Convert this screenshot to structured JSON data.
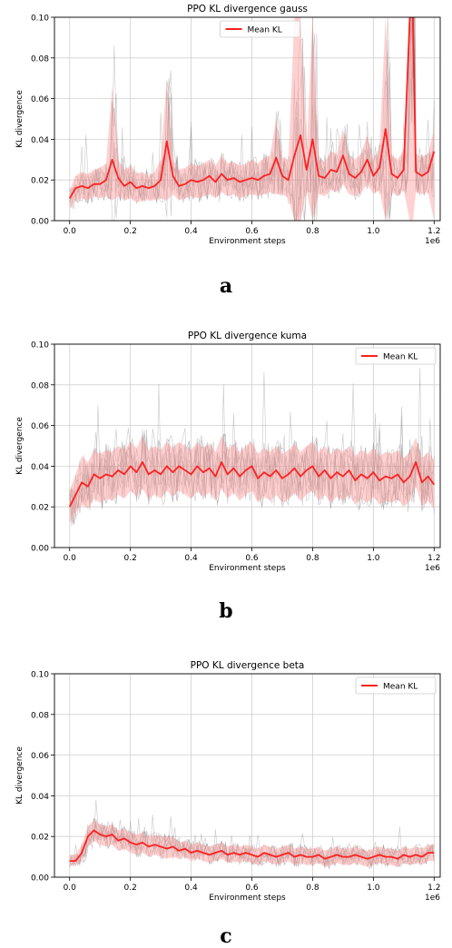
{
  "figure": {
    "panel_letters": [
      "a",
      "b",
      "c"
    ]
  },
  "chart_data": [
    {
      "type": "line",
      "title": "PPO KL divergence gauss",
      "xlabel": "Environment steps",
      "ylabel": "KL divergence",
      "x_scale_note": "1e6",
      "xlim": [
        -0.05,
        1.22
      ],
      "ylim": [
        0,
        0.1
      ],
      "xticks": [
        "0.0",
        "0.2",
        "0.4",
        "0.6",
        "0.8",
        "1.0",
        "1.2"
      ],
      "yticks": [
        "0.00",
        "0.02",
        "0.04",
        "0.06",
        "0.08",
        "0.10"
      ],
      "grid": true,
      "legend": {
        "location": "top-center",
        "entries": [
          "Mean KL"
        ]
      },
      "colors": {
        "mean": "#ff2020",
        "band": "#ff9999",
        "runs": "#888888"
      },
      "series": [
        {
          "name": "Mean KL",
          "x": [
            0.0,
            0.02,
            0.04,
            0.06,
            0.08,
            0.1,
            0.12,
            0.14,
            0.16,
            0.18,
            0.2,
            0.22,
            0.24,
            0.26,
            0.28,
            0.3,
            0.32,
            0.34,
            0.36,
            0.38,
            0.4,
            0.42,
            0.44,
            0.46,
            0.48,
            0.5,
            0.52,
            0.54,
            0.56,
            0.58,
            0.6,
            0.62,
            0.64,
            0.66,
            0.68,
            0.7,
            0.72,
            0.74,
            0.76,
            0.78,
            0.8,
            0.82,
            0.84,
            0.86,
            0.88,
            0.9,
            0.92,
            0.94,
            0.96,
            0.98,
            1.0,
            1.02,
            1.04,
            1.06,
            1.08,
            1.1,
            1.12,
            1.13,
            1.14,
            1.16,
            1.18,
            1.2
          ],
          "values": [
            0.011,
            0.016,
            0.017,
            0.016,
            0.018,
            0.018,
            0.02,
            0.03,
            0.021,
            0.017,
            0.019,
            0.016,
            0.017,
            0.016,
            0.017,
            0.02,
            0.039,
            0.022,
            0.017,
            0.018,
            0.02,
            0.019,
            0.02,
            0.022,
            0.019,
            0.023,
            0.02,
            0.021,
            0.019,
            0.02,
            0.021,
            0.02,
            0.022,
            0.023,
            0.031,
            0.022,
            0.02,
            0.032,
            0.042,
            0.025,
            0.04,
            0.022,
            0.021,
            0.025,
            0.024,
            0.032,
            0.023,
            0.021,
            0.024,
            0.03,
            0.022,
            0.026,
            0.045,
            0.023,
            0.021,
            0.025,
            0.1,
            0.1,
            0.024,
            0.022,
            0.024,
            0.034
          ]
        }
      ],
      "band": {
        "upper": [
          0.015,
          0.022,
          0.024,
          0.023,
          0.025,
          0.026,
          0.028,
          0.066,
          0.03,
          0.025,
          0.027,
          0.023,
          0.024,
          0.022,
          0.024,
          0.03,
          0.07,
          0.03,
          0.025,
          0.026,
          0.028,
          0.027,
          0.028,
          0.03,
          0.027,
          0.032,
          0.028,
          0.029,
          0.027,
          0.028,
          0.03,
          0.028,
          0.031,
          0.032,
          0.05,
          0.031,
          0.03,
          0.1,
          0.1,
          0.034,
          0.1,
          0.03,
          0.029,
          0.034,
          0.033,
          0.045,
          0.032,
          0.03,
          0.033,
          0.042,
          0.03,
          0.036,
          0.1,
          0.032,
          0.03,
          0.035,
          0.1,
          0.1,
          0.033,
          0.031,
          0.033,
          0.045
        ],
        "lower": [
          0.006,
          0.01,
          0.011,
          0.01,
          0.012,
          0.011,
          0.012,
          0.01,
          0.012,
          0.01,
          0.011,
          0.009,
          0.01,
          0.01,
          0.01,
          0.011,
          0.01,
          0.013,
          0.01,
          0.011,
          0.012,
          0.011,
          0.012,
          0.013,
          0.011,
          0.014,
          0.012,
          0.013,
          0.011,
          0.012,
          0.013,
          0.012,
          0.013,
          0.014,
          0.013,
          0.013,
          0.011,
          0.0,
          0.0,
          0.015,
          0.0,
          0.013,
          0.012,
          0.015,
          0.014,
          0.018,
          0.013,
          0.012,
          0.014,
          0.018,
          0.013,
          0.015,
          0.0,
          0.014,
          0.012,
          0.015,
          0.0,
          0.0,
          0.014,
          0.013,
          0.014,
          0.0
        ]
      }
    },
    {
      "type": "line",
      "title": "PPO KL divergence kuma",
      "xlabel": "Environment steps",
      "ylabel": "KL divergence",
      "x_scale_note": "1e6",
      "xlim": [
        -0.05,
        1.22
      ],
      "ylim": [
        0,
        0.1
      ],
      "xticks": [
        "0.0",
        "0.2",
        "0.4",
        "0.6",
        "0.8",
        "1.0",
        "1.2"
      ],
      "yticks": [
        "0.00",
        "0.02",
        "0.04",
        "0.06",
        "0.08",
        "0.10"
      ],
      "grid": true,
      "legend": {
        "location": "top-right",
        "entries": [
          "Mean KL"
        ]
      },
      "colors": {
        "mean": "#ff2020",
        "band": "#ff9999",
        "runs": "#888888"
      },
      "series": [
        {
          "name": "Mean KL",
          "x": [
            0.0,
            0.02,
            0.04,
            0.06,
            0.08,
            0.1,
            0.12,
            0.14,
            0.16,
            0.18,
            0.2,
            0.22,
            0.24,
            0.26,
            0.28,
            0.3,
            0.32,
            0.34,
            0.36,
            0.38,
            0.4,
            0.42,
            0.44,
            0.46,
            0.48,
            0.5,
            0.52,
            0.54,
            0.56,
            0.58,
            0.6,
            0.62,
            0.64,
            0.66,
            0.68,
            0.7,
            0.72,
            0.74,
            0.76,
            0.78,
            0.8,
            0.82,
            0.84,
            0.86,
            0.88,
            0.9,
            0.92,
            0.94,
            0.96,
            0.98,
            1.0,
            1.02,
            1.04,
            1.06,
            1.08,
            1.1,
            1.12,
            1.14,
            1.16,
            1.18,
            1.2
          ],
          "values": [
            0.02,
            0.026,
            0.032,
            0.03,
            0.036,
            0.034,
            0.036,
            0.035,
            0.038,
            0.036,
            0.04,
            0.037,
            0.042,
            0.036,
            0.038,
            0.036,
            0.04,
            0.037,
            0.04,
            0.038,
            0.036,
            0.04,
            0.037,
            0.039,
            0.035,
            0.042,
            0.036,
            0.039,
            0.035,
            0.038,
            0.04,
            0.034,
            0.037,
            0.035,
            0.038,
            0.034,
            0.036,
            0.039,
            0.035,
            0.038,
            0.04,
            0.035,
            0.038,
            0.034,
            0.037,
            0.035,
            0.038,
            0.033,
            0.036,
            0.034,
            0.037,
            0.033,
            0.035,
            0.034,
            0.036,
            0.032,
            0.035,
            0.042,
            0.032,
            0.035,
            0.031
          ]
        }
      ],
      "band": {
        "upper": [
          0.028,
          0.036,
          0.045,
          0.042,
          0.048,
          0.046,
          0.048,
          0.047,
          0.05,
          0.048,
          0.052,
          0.049,
          0.055,
          0.048,
          0.05,
          0.048,
          0.052,
          0.049,
          0.052,
          0.05,
          0.048,
          0.052,
          0.049,
          0.051,
          0.047,
          0.055,
          0.048,
          0.051,
          0.047,
          0.05,
          0.052,
          0.046,
          0.049,
          0.047,
          0.05,
          0.046,
          0.048,
          0.051,
          0.047,
          0.05,
          0.052,
          0.047,
          0.05,
          0.046,
          0.049,
          0.047,
          0.05,
          0.045,
          0.048,
          0.046,
          0.049,
          0.045,
          0.047,
          0.046,
          0.048,
          0.044,
          0.047,
          0.054,
          0.044,
          0.047,
          0.043
        ],
        "lower": [
          0.012,
          0.017,
          0.021,
          0.019,
          0.024,
          0.022,
          0.024,
          0.023,
          0.026,
          0.024,
          0.028,
          0.025,
          0.029,
          0.024,
          0.026,
          0.024,
          0.028,
          0.025,
          0.028,
          0.026,
          0.024,
          0.028,
          0.025,
          0.027,
          0.023,
          0.029,
          0.024,
          0.027,
          0.023,
          0.026,
          0.028,
          0.022,
          0.025,
          0.023,
          0.026,
          0.022,
          0.024,
          0.027,
          0.023,
          0.026,
          0.028,
          0.023,
          0.026,
          0.022,
          0.025,
          0.023,
          0.026,
          0.021,
          0.024,
          0.022,
          0.025,
          0.021,
          0.023,
          0.022,
          0.024,
          0.02,
          0.023,
          0.03,
          0.02,
          0.023,
          0.019
        ]
      }
    },
    {
      "type": "line",
      "title": "PPO KL divergence beta",
      "xlabel": "Environment steps",
      "ylabel": "KL divergence",
      "x_scale_note": "1e6",
      "xlim": [
        -0.05,
        1.22
      ],
      "ylim": [
        0,
        0.1
      ],
      "xticks": [
        "0.0",
        "0.2",
        "0.4",
        "0.6",
        "0.8",
        "1.0",
        "1.2"
      ],
      "yticks": [
        "0.00",
        "0.02",
        "0.04",
        "0.06",
        "0.08",
        "0.10"
      ],
      "grid": true,
      "legend": {
        "location": "top-right",
        "entries": [
          "Mean KL"
        ]
      },
      "colors": {
        "mean": "#ff2020",
        "band": "#ff9999",
        "runs": "#888888"
      },
      "series": [
        {
          "name": "Mean KL",
          "x": [
            0.0,
            0.02,
            0.04,
            0.06,
            0.08,
            0.1,
            0.12,
            0.14,
            0.16,
            0.18,
            0.2,
            0.22,
            0.24,
            0.26,
            0.28,
            0.3,
            0.32,
            0.34,
            0.36,
            0.38,
            0.4,
            0.42,
            0.44,
            0.46,
            0.48,
            0.5,
            0.52,
            0.54,
            0.56,
            0.58,
            0.6,
            0.62,
            0.64,
            0.66,
            0.68,
            0.7,
            0.72,
            0.74,
            0.76,
            0.78,
            0.8,
            0.82,
            0.84,
            0.86,
            0.88,
            0.9,
            0.92,
            0.94,
            0.96,
            0.98,
            1.0,
            1.02,
            1.04,
            1.06,
            1.08,
            1.1,
            1.12,
            1.14,
            1.16,
            1.18,
            1.2
          ],
          "values": [
            0.008,
            0.008,
            0.012,
            0.02,
            0.023,
            0.021,
            0.02,
            0.021,
            0.018,
            0.019,
            0.017,
            0.016,
            0.017,
            0.015,
            0.016,
            0.015,
            0.014,
            0.015,
            0.013,
            0.014,
            0.012,
            0.013,
            0.012,
            0.011,
            0.012,
            0.013,
            0.011,
            0.012,
            0.011,
            0.012,
            0.011,
            0.01,
            0.012,
            0.011,
            0.01,
            0.011,
            0.012,
            0.01,
            0.011,
            0.01,
            0.01,
            0.011,
            0.009,
            0.01,
            0.011,
            0.01,
            0.01,
            0.011,
            0.01,
            0.009,
            0.01,
            0.011,
            0.01,
            0.01,
            0.009,
            0.011,
            0.01,
            0.011,
            0.01,
            0.012,
            0.012
          ]
        }
      ],
      "band": {
        "upper": [
          0.011,
          0.011,
          0.016,
          0.025,
          0.028,
          0.026,
          0.025,
          0.026,
          0.023,
          0.024,
          0.022,
          0.021,
          0.022,
          0.02,
          0.021,
          0.02,
          0.02,
          0.02,
          0.017,
          0.018,
          0.016,
          0.017,
          0.016,
          0.015,
          0.016,
          0.017,
          0.015,
          0.016,
          0.015,
          0.016,
          0.015,
          0.014,
          0.016,
          0.015,
          0.014,
          0.015,
          0.016,
          0.014,
          0.015,
          0.014,
          0.014,
          0.015,
          0.013,
          0.014,
          0.015,
          0.014,
          0.014,
          0.015,
          0.014,
          0.013,
          0.014,
          0.015,
          0.014,
          0.014,
          0.013,
          0.015,
          0.014,
          0.015,
          0.014,
          0.016,
          0.016
        ],
        "lower": [
          0.006,
          0.006,
          0.008,
          0.015,
          0.018,
          0.016,
          0.015,
          0.016,
          0.013,
          0.014,
          0.012,
          0.011,
          0.012,
          0.01,
          0.011,
          0.01,
          0.009,
          0.01,
          0.009,
          0.01,
          0.008,
          0.009,
          0.008,
          0.007,
          0.008,
          0.009,
          0.007,
          0.008,
          0.007,
          0.008,
          0.007,
          0.006,
          0.008,
          0.007,
          0.006,
          0.007,
          0.008,
          0.006,
          0.007,
          0.006,
          0.006,
          0.007,
          0.005,
          0.006,
          0.007,
          0.006,
          0.006,
          0.007,
          0.006,
          0.005,
          0.006,
          0.007,
          0.006,
          0.006,
          0.005,
          0.007,
          0.006,
          0.007,
          0.006,
          0.008,
          0.008
        ]
      }
    }
  ]
}
